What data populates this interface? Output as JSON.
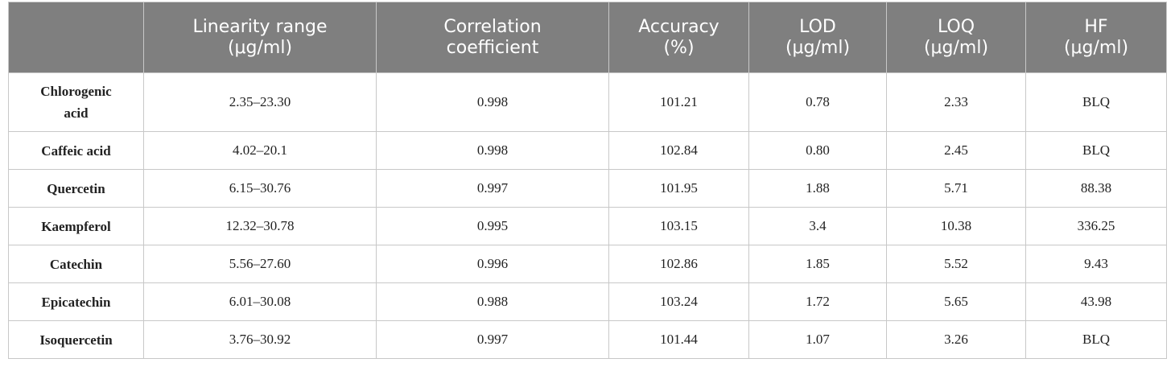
{
  "table": {
    "headers": [
      [
        "Linearity range",
        "(μg/ml)"
      ],
      [
        "Correlation",
        "coefficient"
      ],
      [
        "Accuracy",
        "(%)"
      ],
      [
        "LOD",
        "(μg/ml)"
      ],
      [
        "LOQ",
        "(μg/ml)"
      ],
      [
        "HF",
        "(μg/ml)"
      ]
    ],
    "rows": [
      [
        "Chlorogenic acid",
        "2.35–23.30",
        "0.998",
        "101.21",
        "0.78",
        "2.33",
        "BLQ"
      ],
      [
        "Caffeic acid",
        "4.02–20.1",
        "0.998",
        "102.84",
        "0.80",
        "2.45",
        "BLQ"
      ],
      [
        "Quercetin",
        "6.15–30.76",
        "0.997",
        "101.95",
        "1.88",
        "5.71",
        "88.38"
      ],
      [
        "Kaempferol",
        "12.32–30.78",
        "0.995",
        "103.15",
        "3.4",
        "10.38",
        "336.25"
      ],
      [
        "Catechin",
        "5.56–27.60",
        "0.996",
        "102.86",
        "1.85",
        "5.52",
        "9.43"
      ],
      [
        "Epicatechin",
        "6.01–30.08",
        "0.988",
        "103.24",
        "1.72",
        "5.65",
        "43.98"
      ],
      [
        "Isoquercetin",
        "3.76–30.92",
        "0.997",
        "101.44",
        "1.07",
        "3.26",
        "BLQ"
      ]
    ]
  }
}
